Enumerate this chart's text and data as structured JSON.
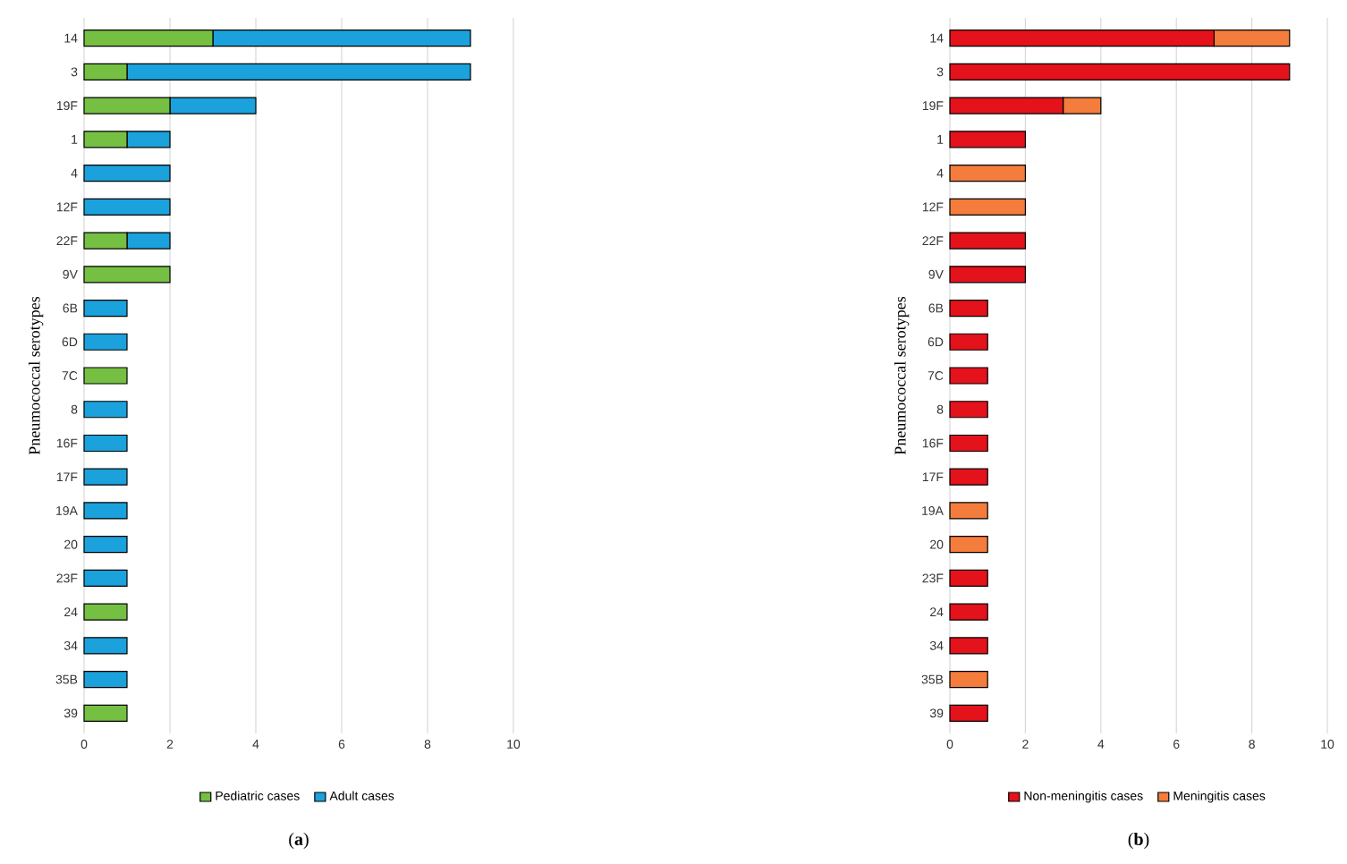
{
  "chart_data": [
    {
      "type": "bar",
      "orientation": "horizontal",
      "stacked": true,
      "ylabel": "Pneumococcal serotypes",
      "categories": [
        "14",
        "3",
        "19F",
        "1",
        "4",
        "12F",
        "22F",
        "9V",
        "6B",
        "6D",
        "7C",
        "8",
        "16F",
        "17F",
        "19A",
        "20",
        "23F",
        "24",
        "34",
        "35B",
        "39"
      ],
      "xlim": [
        0,
        10
      ],
      "xticks": [
        0,
        2,
        4,
        6,
        8,
        10
      ],
      "grid": "x",
      "legend": "bottom",
      "annotations": [
        "(**a**)"
      ],
      "series": [
        {
          "name": "Pediatric cases",
          "color": "#75c043",
          "values": [
            3,
            1,
            2,
            1,
            0,
            0,
            1,
            2,
            0,
            0,
            1,
            0,
            0,
            0,
            0,
            0,
            0,
            1,
            0,
            0,
            1
          ]
        },
        {
          "name": "Adult cases",
          "color": "#1ba1db",
          "values": [
            6,
            8,
            2,
            1,
            2,
            2,
            1,
            0,
            1,
            1,
            0,
            1,
            1,
            1,
            1,
            1,
            1,
            0,
            1,
            1,
            0
          ]
        }
      ]
    },
    {
      "type": "bar",
      "orientation": "horizontal",
      "stacked": true,
      "ylabel": "Pneumococcal serotypes",
      "categories": [
        "14",
        "3",
        "19F",
        "1",
        "4",
        "12F",
        "22F",
        "9V",
        "6B",
        "6D",
        "7C",
        "8",
        "16F",
        "17F",
        "19A",
        "20",
        "23F",
        "24",
        "34",
        "35B",
        "39"
      ],
      "xlim": [
        0,
        10
      ],
      "xticks": [
        0,
        2,
        4,
        6,
        8,
        10
      ],
      "grid": "x",
      "legend": "bottom",
      "annotations": [
        "(**b**)"
      ],
      "series": [
        {
          "name": "Non-meningitis cases",
          "color": "#e3121b",
          "values": [
            7,
            9,
            3,
            2,
            0,
            0,
            2,
            2,
            1,
            1,
            1,
            1,
            1,
            1,
            0,
            0,
            1,
            1,
            1,
            0,
            1
          ]
        },
        {
          "name": "Meningitis cases",
          "color": "#f47c3c",
          "values": [
            2,
            0,
            1,
            0,
            2,
            2,
            0,
            0,
            0,
            0,
            0,
            0,
            0,
            0,
            1,
            1,
            0,
            0,
            0,
            1,
            0
          ]
        }
      ]
    }
  ]
}
